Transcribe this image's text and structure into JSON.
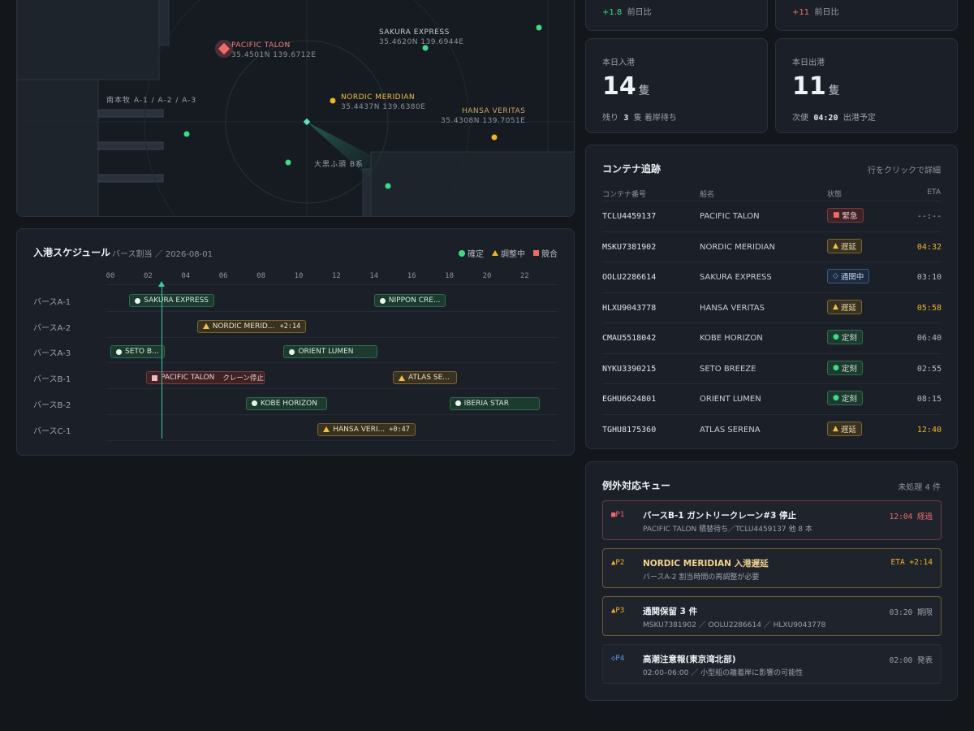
{
  "map": {
    "ships": [
      {
        "name": "PACIFIC TALON",
        "coord": "35.4501N 139.6712E",
        "status": "crit"
      },
      {
        "name": "SAKURA EXPRESS",
        "coord": "35.4620N 139.6944E",
        "status": "ok"
      },
      {
        "name": "NORDIC MERIDIAN",
        "coord": "35.4437N 139.6380E",
        "status": "warn"
      },
      {
        "name": "HANSA VERITAS",
        "coord": "35.4308N 139.7051E",
        "status": "warn"
      }
    ],
    "labels": {
      "minamihonmoku": "南本牧 A-1 / A-2 / A-3",
      "daikoku": "大黒ふ頭 B系"
    }
  },
  "kpis": {
    "top_left": {
      "delta": "+1.8",
      "delta_label": "前日比"
    },
    "top_right": {
      "delta": "+11",
      "delta_label": "前日比"
    },
    "arrivals": {
      "title": "本日入港",
      "value": "14",
      "unit": "隻",
      "sub_pre": "残り",
      "sub_val": "3",
      "sub_post": "隻 着岸待ち"
    },
    "departures": {
      "title": "本日出港",
      "value": "11",
      "unit": "隻",
      "sub_pre": "次便",
      "sub_val": "04:20",
      "sub_post": "出港予定"
    }
  },
  "schedule": {
    "title": "入港スケジュール",
    "subtitle": "バース割当 ／ 2026-08-01",
    "legend": {
      "ok": "確定",
      "warn": "調整中",
      "crit": "競合"
    },
    "hours": [
      "00",
      "02",
      "04",
      "06",
      "08",
      "10",
      "12",
      "14",
      "16",
      "18",
      "20",
      "22"
    ],
    "now_hour": 2.7,
    "berths": [
      {
        "label": "バースA-1",
        "slots": [
          {
            "name": "SAKURA EXPRESS",
            "start": 1.0,
            "end": 5.5,
            "status": "ok",
            "extra": ""
          },
          {
            "name": "NIPPON CRE...",
            "start": 14.0,
            "end": 17.8,
            "status": "ok",
            "extra": ""
          }
        ]
      },
      {
        "label": "バースA-2",
        "slots": [
          {
            "name": "NORDIC MERID...",
            "start": 4.6,
            "end": 10.4,
            "status": "warn",
            "extra": "+2:14"
          }
        ]
      },
      {
        "label": "バースA-3",
        "slots": [
          {
            "name": "SETO B...",
            "start": 0.0,
            "end": 2.9,
            "status": "ok",
            "extra": ""
          },
          {
            "name": "ORIENT LUMEN",
            "start": 9.2,
            "end": 14.2,
            "status": "ok",
            "extra": ""
          }
        ]
      },
      {
        "label": "バースB-1",
        "slots": [
          {
            "name": "PACIFIC TALON",
            "start": 1.9,
            "end": 8.2,
            "status": "crit",
            "extra": "クレーン停止"
          },
          {
            "name": "ATLAS SE...",
            "start": 15.0,
            "end": 18.4,
            "status": "warn",
            "extra": ""
          }
        ]
      },
      {
        "label": "バースB-2",
        "slots": [
          {
            "name": "KOBE HORIZON",
            "start": 7.2,
            "end": 11.5,
            "status": "ok",
            "extra": ""
          },
          {
            "name": "IBERIA STAR",
            "start": 18.0,
            "end": 22.8,
            "status": "ok",
            "extra": ""
          }
        ]
      },
      {
        "label": "バースC-1",
        "slots": [
          {
            "name": "HANSA VERI...",
            "start": 11.0,
            "end": 16.2,
            "status": "warn",
            "extra": "+0:47"
          }
        ]
      }
    ]
  },
  "tracking": {
    "title": "コンテナ追跡",
    "hint": "行をクリックで詳細",
    "headers": {
      "id": "コンテナ番号",
      "ship": "船名",
      "status": "状態",
      "eta": "ETA"
    },
    "rows": [
      {
        "id": "TCLU4459137",
        "ship": "PACIFIC TALON",
        "status": "緊急",
        "level": "crit",
        "eta": "--:--"
      },
      {
        "id": "MSKU7381902",
        "ship": "NORDIC MERIDIAN",
        "status": "遅延",
        "level": "warn",
        "eta": "04:32"
      },
      {
        "id": "OOLU2286614",
        "ship": "SAKURA EXPRESS",
        "status": "通関中",
        "level": "info",
        "eta": "03:10"
      },
      {
        "id": "HLXU9043778",
        "ship": "HANSA VERITAS",
        "status": "遅延",
        "level": "warn",
        "eta": "05:58"
      },
      {
        "id": "CMAU5518042",
        "ship": "KOBE HORIZON",
        "status": "定刻",
        "level": "ok",
        "eta": "06:40"
      },
      {
        "id": "NYKU3390215",
        "ship": "SETO BREEZE",
        "status": "定刻",
        "level": "ok",
        "eta": "02:55"
      },
      {
        "id": "EGHU6624801",
        "ship": "ORIENT LUMEN",
        "status": "定刻",
        "level": "ok",
        "eta": "08:15"
      },
      {
        "id": "TGHU8175360",
        "ship": "ATLAS SERENA",
        "status": "遅延",
        "level": "warn",
        "eta": "12:40"
      }
    ]
  },
  "queue": {
    "title": "例外対応キュー",
    "count_label": "未処理 4 件",
    "items": [
      {
        "priority": "P1",
        "level": "crit",
        "title": "バースB-1 ガントリークレーン#3 停止",
        "detail": "PACIFIC TALON 積替待ち／TCLU4459137 他 8 本",
        "right": "12:04 経過"
      },
      {
        "priority": "P2",
        "level": "warn",
        "title": "NORDIC MERIDIAN 入港遅延",
        "detail": "バースA-2 割当時間の再調整が必要",
        "right": "ETA +2:14"
      },
      {
        "priority": "P3",
        "level": "warn",
        "title": "通関保留 3 件",
        "detail": "MSKU7381902 ／ OOLU2286614 ／ HLXU9043778",
        "right": "03:20 期限"
      },
      {
        "priority": "P4",
        "level": "info",
        "title": "高潮注意報(東京湾北部)",
        "detail": "02:00–06:00 ／ 小型船の離着岸に影響の可能性",
        "right": "02:00 発表"
      }
    ]
  },
  "colors": {
    "ok": "#3ddc84",
    "warn": "#f0b429",
    "crit": "#f06a6a",
    "info": "#5b9bf0",
    "accent": "#3cc9a8"
  }
}
